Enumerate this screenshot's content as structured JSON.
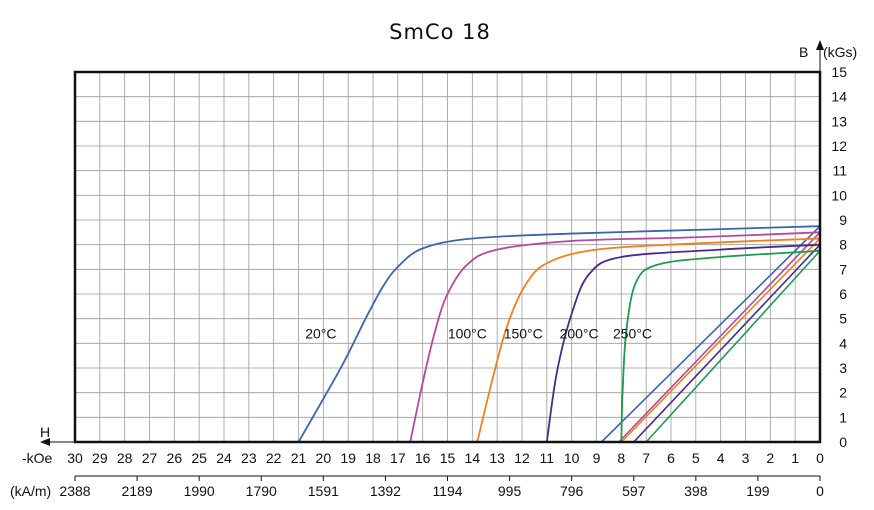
{
  "chart_data": {
    "type": "line",
    "title": "SmCo 18",
    "y_axis": {
      "label_b": "B",
      "label_unit": "(kGs)",
      "ticks": [
        "15",
        "14",
        "13",
        "12",
        "11",
        "10",
        "9",
        "8",
        "7",
        "6",
        "5",
        "4",
        "3",
        "2",
        "1",
        "0"
      ],
      "ylim": [
        0,
        15
      ]
    },
    "x_axis": {
      "label_h": "H",
      "label_koe": "-kOe",
      "label_kam": "(kA/m)",
      "koe_ticks": [
        "30",
        "29",
        "28",
        "27",
        "26",
        "25",
        "24",
        "23",
        "22",
        "21",
        "20",
        "19",
        "18",
        "17",
        "16",
        "15",
        "14",
        "13",
        "12",
        "11",
        "10",
        "9",
        "8",
        "7",
        "6",
        "5",
        "4",
        "3",
        "2",
        "1",
        "0"
      ],
      "kam_ticks": [
        "2388",
        "2189",
        "1990",
        "1790",
        "1591",
        "1392",
        "1194",
        "995",
        "796",
        "597",
        "398",
        "199",
        "0"
      ],
      "kam_ticks_koe_pos": [
        30,
        27.5,
        25,
        22.5,
        20,
        17.5,
        15,
        12.5,
        10,
        7.5,
        5,
        2.5,
        0
      ],
      "xlim_koe": [
        0,
        30
      ],
      "direction": "reversed"
    },
    "grid": true,
    "series": [
      {
        "name": "20°C",
        "color": "#3a66a8",
        "bh_x": [
          0,
          9.0,
          20.0
        ],
        "bh_y": [
          8.75,
          8.45,
          8.0
        ],
        "lin_x": [
          8.8,
          0
        ],
        "lin_y": [
          0,
          8.75
        ],
        "x": [
          0,
          5,
          10,
          14,
          16,
          17,
          17.6,
          18.3,
          19.3,
          21.0
        ],
        "y": [
          8.75,
          8.6,
          8.45,
          8.25,
          7.85,
          7.1,
          6.3,
          5.0,
          3.0,
          0
        ]
      },
      {
        "name": "100°C",
        "color": "#b44aa0",
        "x": [
          0,
          5,
          10,
          13,
          14.2,
          15.0,
          15.5,
          16.0,
          16.5
        ],
        "y": [
          8.5,
          8.3,
          8.15,
          7.8,
          7.2,
          6.0,
          4.5,
          2.4,
          0
        ],
        "lin_x": [
          8.1,
          0
        ],
        "lin_y": [
          0,
          8.5
        ]
      },
      {
        "name": "150°C",
        "color": "#f07f1e",
        "x": [
          0,
          5,
          9,
          11,
          11.9,
          12.6,
          13.2,
          13.8
        ],
        "y": [
          8.25,
          8.05,
          7.8,
          7.25,
          6.3,
          4.7,
          2.5,
          0
        ],
        "lin_x": [
          8.0,
          0
        ],
        "lin_y": [
          0,
          8.25
        ]
      },
      {
        "name": "200°C",
        "color": "#4b2b85",
        "x": [
          0,
          4,
          8,
          9.3,
          10.0,
          10.6,
          11.0
        ],
        "y": [
          8.0,
          7.8,
          7.5,
          6.8,
          5.2,
          2.8,
          0
        ],
        "lin_x": [
          7.5,
          0
        ],
        "lin_y": [
          0,
          8.0
        ]
      },
      {
        "name": "250°C",
        "color": "#1f9a4e",
        "x": [
          0,
          4,
          6.5,
          7.4,
          7.8,
          7.95,
          8.0
        ],
        "y": [
          7.75,
          7.5,
          7.2,
          6.5,
          4.5,
          2.0,
          0
        ],
        "lin_x": [
          7.0,
          0
        ],
        "lin_y": [
          0,
          7.75
        ]
      }
    ],
    "labels": [
      {
        "text": "20°C",
        "x": 20.1,
        "y": 4.4
      },
      {
        "text": "100°C",
        "x": 14.2,
        "y": 4.4
      },
      {
        "text": "150°C",
        "x": 11.95,
        "y": 4.4
      },
      {
        "text": "200°C",
        "x": 9.7,
        "y": 4.4
      },
      {
        "text": "250°C",
        "x": 7.55,
        "y": 4.4
      }
    ]
  }
}
